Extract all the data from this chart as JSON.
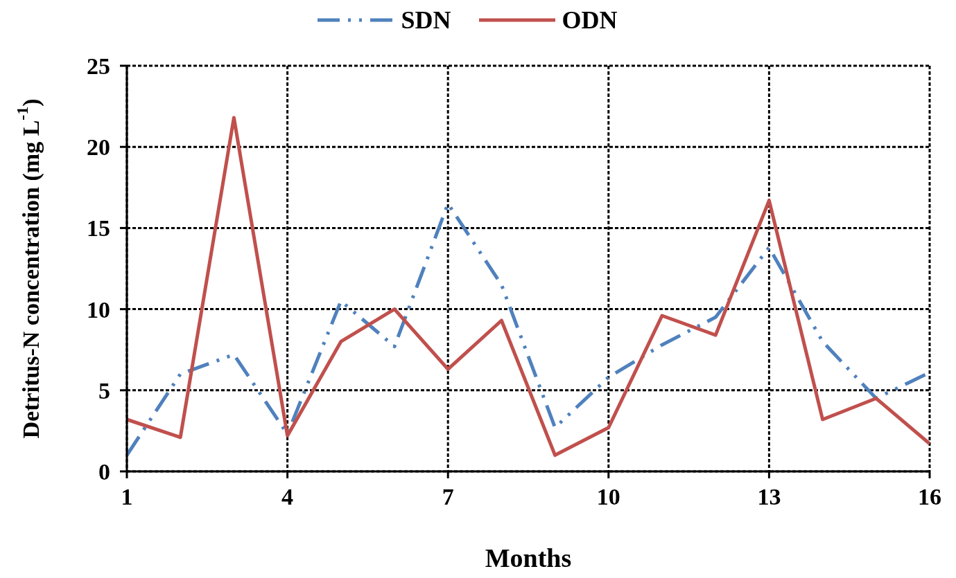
{
  "chart_data": {
    "type": "line",
    "xlabel": "Months",
    "ylabel": "Detritus-N concentration (mg L$^{-1}$)",
    "x": [
      1,
      2,
      3,
      4,
      5,
      6,
      7,
      8,
      9,
      10,
      11,
      12,
      13,
      14,
      15,
      16
    ],
    "series": [
      {
        "name": "SDN",
        "color": "#4f81bd",
        "line_style": "dashed",
        "values": [
          1.0,
          6.0,
          7.2,
          2.3,
          10.5,
          7.7,
          16.5,
          11.5,
          2.7,
          5.8,
          7.8,
          9.5,
          13.8,
          8.0,
          4.5,
          6.1
        ]
      },
      {
        "name": "ODN",
        "color": "#c0504d",
        "line_style": "solid",
        "values": [
          3.2,
          2.1,
          21.8,
          2.2,
          8.0,
          10.0,
          6.3,
          9.3,
          1.0,
          2.7,
          9.6,
          8.4,
          16.7,
          3.2,
          4.5,
          1.7
        ]
      }
    ],
    "xlim": [
      1,
      16
    ],
    "xticks": [
      1,
      4,
      7,
      10,
      13,
      16
    ],
    "ylim": [
      0,
      25
    ],
    "yticks": [
      0,
      5,
      10,
      15,
      20,
      25
    ],
    "grid": true,
    "legend": "top",
    "marker": "none"
  }
}
